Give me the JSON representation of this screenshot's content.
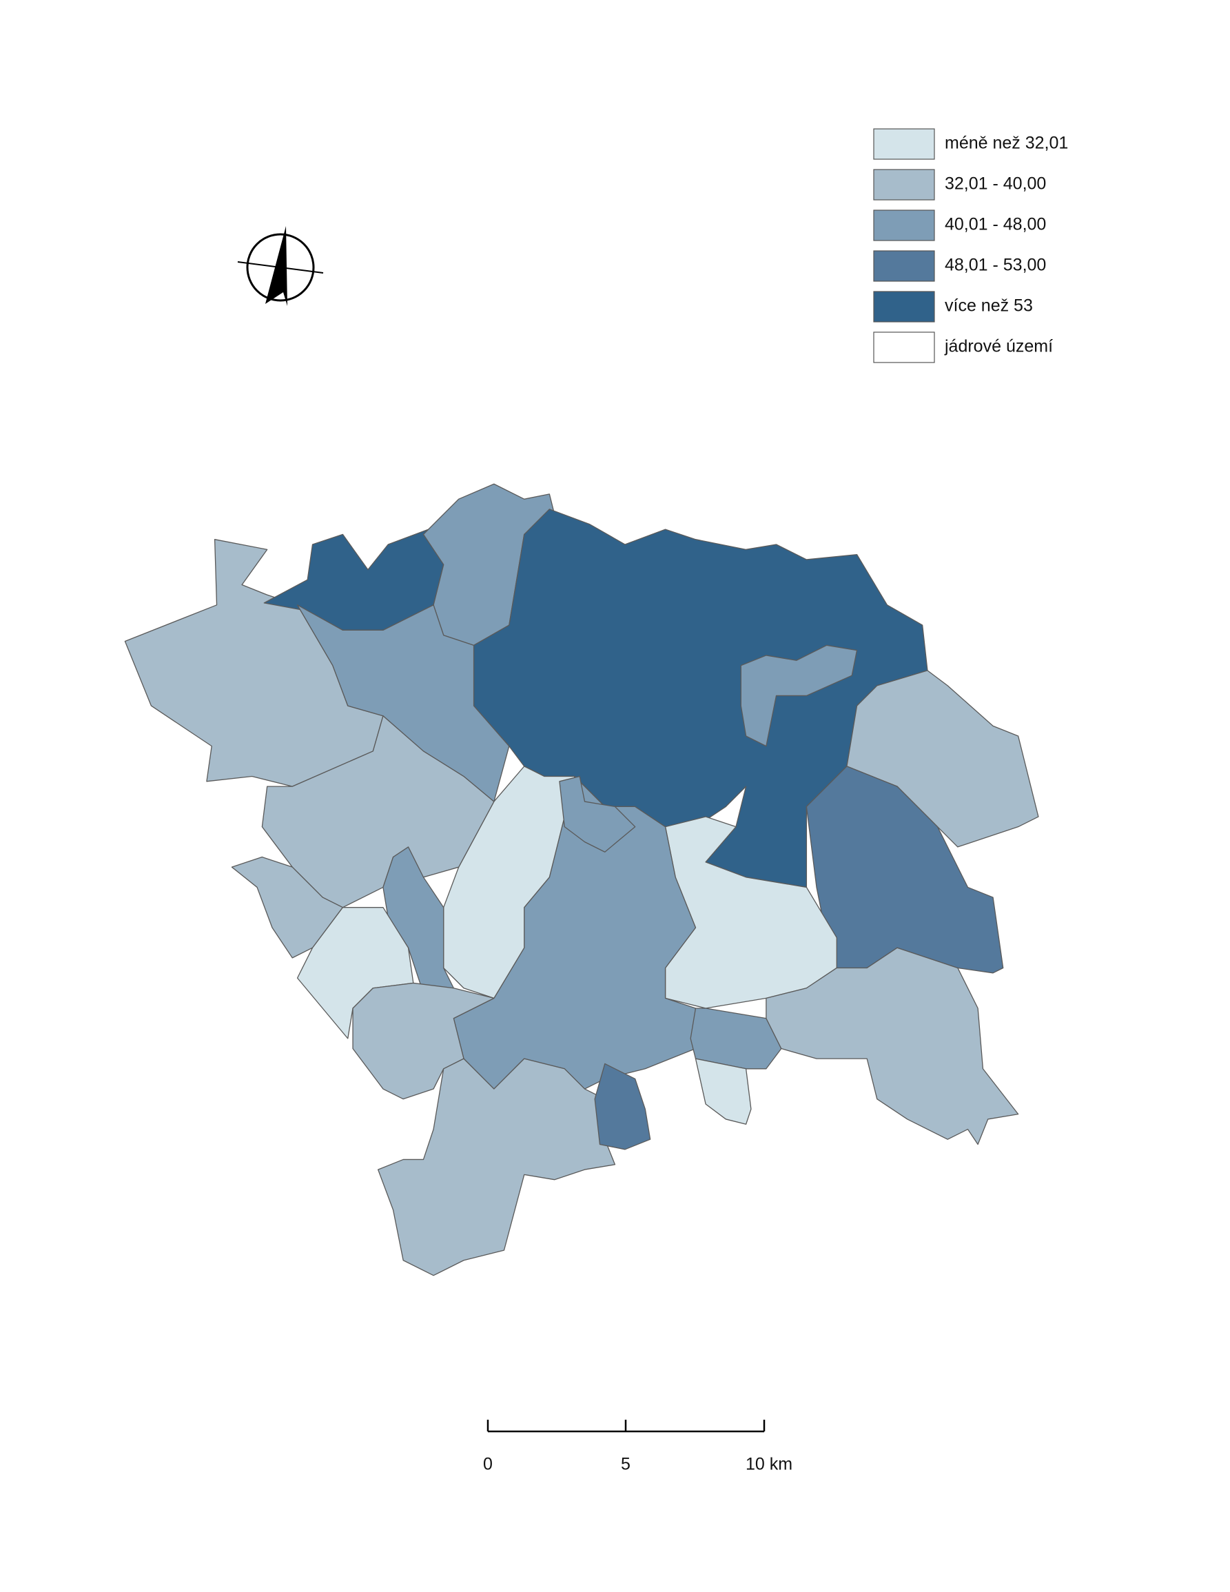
{
  "legend": {
    "items": [
      {
        "label": "méně než 32,01",
        "color": "#d4e4ea"
      },
      {
        "label": "32,01 - 40,00",
        "color": "#a7bccb"
      },
      {
        "label": "40,01 - 48,00",
        "color": "#7e9db6"
      },
      {
        "label": "48,01 - 53,00",
        "color": "#54799c"
      },
      {
        "label": "více než 53",
        "color": "#30628a"
      },
      {
        "label": "jádrové území",
        "color": "#ffffff"
      }
    ]
  },
  "scale_bar": {
    "labels": [
      "0",
      "5",
      "10 km"
    ]
  }
}
